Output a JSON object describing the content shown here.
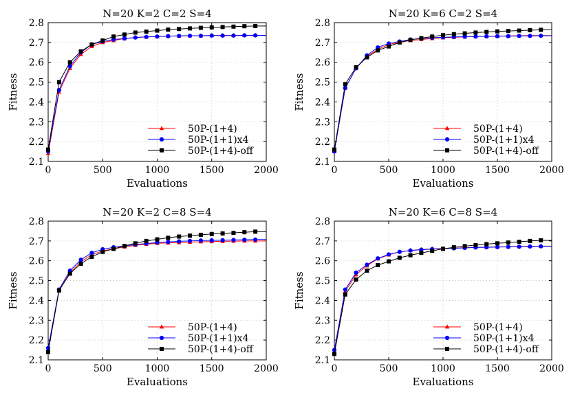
{
  "chart_data": [
    {
      "type": "line",
      "title": "N=20   K=2   C=2   S=4",
      "xlabel": "Evaluations",
      "ylabel": "Fitness",
      "xlim": [
        0,
        2000
      ],
      "ylim": [
        2.1,
        2.8
      ],
      "xticks": [
        "0",
        "500",
        "1000",
        "1500",
        "2000"
      ],
      "yticks": [
        "2.1",
        "2.2",
        "2.3",
        "2.4",
        "2.5",
        "2.6",
        "2.7",
        "2.8"
      ],
      "grid": true,
      "legend_position": "bottom-right",
      "x": [
        0,
        100,
        200,
        300,
        400,
        500,
        600,
        700,
        800,
        900,
        1000,
        1100,
        1200,
        1300,
        1400,
        1500,
        1600,
        1700,
        1800,
        1900
      ],
      "series": [
        {
          "name": "50P-(1+4)",
          "color": "#ff0000",
          "marker": "triangle",
          "values": [
            2.14,
            2.45,
            2.57,
            2.64,
            2.68,
            2.7,
            2.71,
            2.72,
            2.725,
            2.728,
            2.73,
            2.732,
            2.733,
            2.734,
            2.734,
            2.735,
            2.735,
            2.735,
            2.736,
            2.736
          ]
        },
        {
          "name": "50P-(1+1)x4",
          "color": "#0000ff",
          "marker": "circle",
          "values": [
            2.15,
            2.46,
            2.58,
            2.65,
            2.69,
            2.705,
            2.715,
            2.72,
            2.725,
            2.728,
            2.73,
            2.732,
            2.733,
            2.734,
            2.734,
            2.735,
            2.735,
            2.735,
            2.736,
            2.736
          ]
        },
        {
          "name": "50P-(1+4)-off",
          "color": "#000000",
          "marker": "square",
          "values": [
            2.16,
            2.5,
            2.6,
            2.655,
            2.69,
            2.71,
            2.73,
            2.74,
            2.75,
            2.755,
            2.76,
            2.765,
            2.768,
            2.771,
            2.774,
            2.776,
            2.778,
            2.78,
            2.782,
            2.783
          ]
        }
      ]
    },
    {
      "type": "line",
      "title": "N=20   K=6   C=2   S=4",
      "xlabel": "Evaluations",
      "ylabel": "Fitness",
      "xlim": [
        0,
        2000
      ],
      "ylim": [
        2.1,
        2.8
      ],
      "xticks": [
        "0",
        "500",
        "1000",
        "1500",
        "2000"
      ],
      "yticks": [
        "2.1",
        "2.2",
        "2.3",
        "2.4",
        "2.5",
        "2.6",
        "2.7",
        "2.8"
      ],
      "grid": true,
      "legend_position": "bottom-right",
      "x": [
        0,
        100,
        200,
        300,
        400,
        500,
        600,
        700,
        800,
        900,
        1000,
        1100,
        1200,
        1300,
        1400,
        1500,
        1600,
        1700,
        1800,
        1900
      ],
      "series": [
        {
          "name": "50P-(1+4)",
          "color": "#ff0000",
          "marker": "triangle",
          "values": [
            2.15,
            2.47,
            2.57,
            2.63,
            2.665,
            2.69,
            2.7,
            2.71,
            2.715,
            2.72,
            2.724,
            2.726,
            2.728,
            2.73,
            2.731,
            2.732,
            2.733,
            2.734,
            2.735,
            2.735
          ]
        },
        {
          "name": "50P-(1+1)x4",
          "color": "#0000ff",
          "marker": "circle",
          "values": [
            2.15,
            2.47,
            2.57,
            2.635,
            2.675,
            2.695,
            2.705,
            2.715,
            2.72,
            2.724,
            2.726,
            2.728,
            2.729,
            2.73,
            2.731,
            2.732,
            2.732,
            2.733,
            2.733,
            2.734
          ]
        },
        {
          "name": "50P-(1+4)-off",
          "color": "#000000",
          "marker": "square",
          "values": [
            2.16,
            2.49,
            2.575,
            2.625,
            2.66,
            2.68,
            2.7,
            2.713,
            2.722,
            2.73,
            2.737,
            2.742,
            2.746,
            2.75,
            2.753,
            2.756,
            2.758,
            2.76,
            2.762,
            2.764
          ]
        }
      ]
    },
    {
      "type": "line",
      "title": "N=20   K=2   C=8   S=4",
      "xlabel": "Evaluations",
      "ylabel": "Fitness",
      "xlim": [
        0,
        2000
      ],
      "ylim": [
        2.1,
        2.8
      ],
      "xticks": [
        "0",
        "500",
        "1000",
        "1500",
        "2000"
      ],
      "yticks": [
        "2.1",
        "2.2",
        "2.3",
        "2.4",
        "2.5",
        "2.6",
        "2.7",
        "2.8"
      ],
      "grid": true,
      "legend_position": "bottom-right",
      "x": [
        0,
        100,
        200,
        300,
        400,
        500,
        600,
        700,
        800,
        900,
        1000,
        1100,
        1200,
        1300,
        1400,
        1500,
        1600,
        1700,
        1800,
        1900
      ],
      "series": [
        {
          "name": "50P-(1+4)",
          "color": "#ff0000",
          "marker": "triangle",
          "values": [
            2.15,
            2.45,
            2.54,
            2.595,
            2.63,
            2.65,
            2.66,
            2.67,
            2.678,
            2.684,
            2.688,
            2.69,
            2.692,
            2.694,
            2.696,
            2.697,
            2.698,
            2.699,
            2.7,
            2.7
          ]
        },
        {
          "name": "50P-(1+1)x4",
          "color": "#0000ff",
          "marker": "circle",
          "values": [
            2.16,
            2.455,
            2.55,
            2.605,
            2.64,
            2.658,
            2.668,
            2.675,
            2.682,
            2.687,
            2.692,
            2.695,
            2.698,
            2.7,
            2.702,
            2.703,
            2.704,
            2.705,
            2.706,
            2.707
          ]
        },
        {
          "name": "50P-(1+4)-off",
          "color": "#000000",
          "marker": "square",
          "values": [
            2.14,
            2.45,
            2.535,
            2.585,
            2.62,
            2.645,
            2.66,
            2.675,
            2.688,
            2.7,
            2.708,
            2.716,
            2.722,
            2.727,
            2.731,
            2.735,
            2.738,
            2.741,
            2.744,
            2.747
          ]
        }
      ]
    },
    {
      "type": "line",
      "title": "N=20   K=6   C=8   S=4",
      "xlabel": "Evaluations",
      "ylabel": "Fitness",
      "xlim": [
        0,
        2000
      ],
      "ylim": [
        2.1,
        2.8
      ],
      "xticks": [
        "0",
        "500",
        "1000",
        "1500",
        "2000"
      ],
      "yticks": [
        "2.1",
        "2.2",
        "2.3",
        "2.4",
        "2.5",
        "2.6",
        "2.7",
        "2.8"
      ],
      "grid": true,
      "legend_position": "bottom-right",
      "x": [
        0,
        100,
        200,
        300,
        400,
        500,
        600,
        700,
        800,
        900,
        1000,
        1100,
        1200,
        1300,
        1400,
        1500,
        1600,
        1700,
        1800,
        1900
      ],
      "series": [
        {
          "name": "50P-(1+4)",
          "color": "#ff0000",
          "marker": "triangle",
          "values": [
            2.14,
            2.445,
            2.53,
            2.575,
            2.61,
            2.63,
            2.645,
            2.652,
            2.657,
            2.66,
            2.662,
            2.664,
            2.666,
            2.668,
            2.669,
            2.67,
            2.671,
            2.672,
            2.673,
            2.674
          ]
        },
        {
          "name": "50P-(1+1)x4",
          "color": "#0000ff",
          "marker": "circle",
          "values": [
            2.15,
            2.455,
            2.54,
            2.58,
            2.612,
            2.632,
            2.645,
            2.652,
            2.656,
            2.659,
            2.661,
            2.663,
            2.665,
            2.667,
            2.668,
            2.669,
            2.67,
            2.671,
            2.672,
            2.673
          ]
        },
        {
          "name": "50P-(1+4)-off",
          "color": "#000000",
          "marker": "square",
          "values": [
            2.13,
            2.43,
            2.505,
            2.55,
            2.578,
            2.597,
            2.615,
            2.628,
            2.64,
            2.65,
            2.66,
            2.668,
            2.674,
            2.679,
            2.684,
            2.688,
            2.692,
            2.696,
            2.7,
            2.703
          ]
        }
      ]
    }
  ]
}
